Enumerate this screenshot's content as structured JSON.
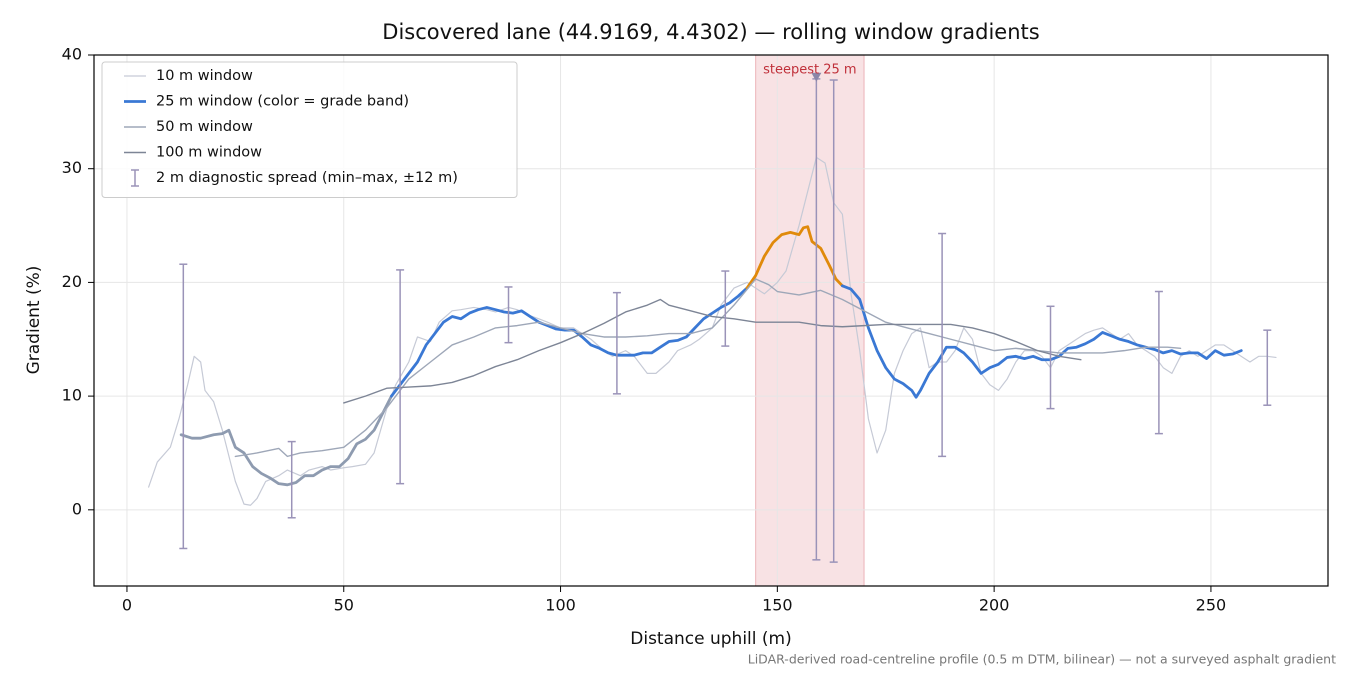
{
  "chart_data": {
    "type": "line",
    "title": "Discovered lane (44.9169, 4.4302) — rolling window gradients",
    "x_label": "Distance uphill (m)",
    "y_label": "Gradient (%)",
    "footnote": "LiDAR-derived road-centreline profile (0.5 m DTM, bilinear) — not a surveyed asphalt gradient",
    "xlim": [
      -7.6,
      277
    ],
    "ylim": [
      -6.7,
      40
    ],
    "xticks": [
      0,
      50,
      100,
      150,
      200,
      250
    ],
    "yticks": [
      0,
      10,
      20,
      30,
      40
    ],
    "grid": true,
    "legend": "upper left",
    "highlight": {
      "xrange": [
        145,
        170
      ],
      "label": "steepest 25 m",
      "color": "#e8a4aa",
      "label_color": "#c0303a",
      "marker": {
        "x": 159,
        "y": 38
      }
    },
    "series": [
      {
        "name": "10 m window",
        "color": "#c6cad6",
        "width": 1.2,
        "x": [
          5,
          7,
          10,
          12,
          14,
          15.5,
          17,
          18,
          20,
          22,
          24,
          25,
          27,
          28.5,
          30,
          32,
          35,
          37,
          40,
          42,
          45,
          47,
          50,
          52,
          55,
          57,
          60,
          62,
          65,
          67,
          70,
          72,
          75,
          77,
          80,
          83,
          85,
          88,
          90,
          92,
          95,
          97,
          100,
          103,
          105,
          107,
          110,
          112,
          115,
          117,
          120,
          122,
          125,
          127,
          130,
          132,
          135,
          137,
          140,
          143,
          145,
          147,
          150,
          152,
          155,
          157,
          159,
          161,
          163,
          165,
          167,
          169,
          171,
          173,
          175,
          177,
          179,
          181,
          183,
          185,
          187,
          189,
          191,
          193,
          195,
          197,
          199,
          201,
          203,
          205,
          207,
          209,
          211,
          213,
          215,
          217,
          219,
          221,
          223,
          225,
          227,
          229,
          231,
          233,
          235,
          237,
          239,
          241,
          243,
          245,
          247,
          249,
          251,
          253,
          255,
          257,
          259,
          261,
          263,
          265
        ],
        "values": [
          2,
          4.2,
          5.5,
          8,
          11,
          13.5,
          13,
          10.5,
          9.5,
          7,
          4,
          2.5,
          0.5,
          0.4,
          1,
          2.5,
          3,
          3.5,
          3,
          3.5,
          3.8,
          3.5,
          3.7,
          3.8,
          4,
          5,
          9,
          11,
          13,
          15.2,
          14.8,
          16.5,
          17.5,
          17.6,
          17.8,
          17.6,
          17.4,
          17.8,
          17.6,
          17.2,
          16.8,
          16.5,
          16,
          16,
          15.5,
          15,
          14,
          13.5,
          14,
          13.5,
          12,
          12,
          13,
          14,
          14.5,
          15,
          16,
          18,
          19.5,
          20,
          19.5,
          19,
          20,
          21,
          25,
          28,
          31,
          30.5,
          27,
          26,
          19,
          14,
          8,
          5,
          7,
          12,
          14,
          15.5,
          16,
          12.5,
          13,
          13,
          14,
          16,
          15,
          12,
          11,
          10.5,
          11.5,
          13,
          14,
          14,
          13.5,
          12.5,
          14,
          14.5,
          15,
          15.5,
          15.8,
          16,
          15.5,
          15,
          15.5,
          14.5,
          14,
          13.5,
          12.5,
          12,
          13.5,
          14,
          13.5,
          14,
          14.5,
          14.5,
          14,
          13.5,
          13,
          13.5,
          13.5,
          13.4
        ]
      },
      {
        "name": "25 m window (color = grade band)",
        "color": "#3a78d4",
        "width": 2.8,
        "grade_bands": {
          "thresholds": [
            10,
            20
          ],
          "colors": [
            "#8e9bb0",
            "#3a78d4",
            "#e08a0b"
          ]
        },
        "x": [
          12.5,
          15,
          17,
          20,
          22,
          23.5,
          25,
          27,
          29,
          31,
          33,
          35,
          37,
          39,
          41,
          43,
          45,
          47,
          49,
          51,
          53,
          55,
          57,
          59,
          61,
          63,
          65,
          67,
          69,
          71,
          73,
          75,
          77,
          79,
          81,
          83,
          85,
          87,
          89,
          91,
          93,
          95,
          97,
          99,
          101,
          103,
          105,
          107,
          109,
          111,
          113,
          115,
          117,
          119,
          121,
          123,
          125,
          127,
          129,
          131,
          133,
          135,
          137,
          139,
          141,
          143,
          145,
          147,
          149,
          151,
          153,
          155,
          156,
          157,
          158,
          160,
          162,
          163.5,
          165,
          167,
          169,
          171,
          173,
          175,
          177,
          179,
          181,
          182,
          183,
          185,
          187,
          189,
          191,
          193,
          195,
          197,
          199,
          201,
          203,
          205,
          207,
          209,
          211,
          213,
          215,
          217,
          219,
          221,
          223,
          225,
          227,
          229,
          231,
          233,
          235,
          237,
          239,
          241,
          243,
          245,
          247,
          249,
          251,
          253,
          255,
          257
        ],
        "values": [
          6.6,
          6.3,
          6.3,
          6.6,
          6.7,
          7,
          5.5,
          5,
          3.8,
          3.2,
          2.8,
          2.3,
          2.2,
          2.4,
          3,
          3,
          3.5,
          3.8,
          3.8,
          4.5,
          5.8,
          6.2,
          7,
          8.5,
          10,
          11,
          12,
          13,
          14.5,
          15.5,
          16.5,
          17,
          16.8,
          17.3,
          17.6,
          17.8,
          17.6,
          17.4,
          17.3,
          17.5,
          17,
          16.5,
          16.2,
          15.9,
          15.8,
          15.8,
          15.2,
          14.5,
          14.2,
          13.8,
          13.6,
          13.6,
          13.6,
          13.8,
          13.8,
          14.3,
          14.8,
          14.9,
          15.2,
          16,
          16.8,
          17.3,
          17.8,
          18.2,
          18.8,
          19.5,
          20.6,
          22.3,
          23.5,
          24.2,
          24.4,
          24.2,
          24.8,
          24.9,
          23.6,
          23,
          21.5,
          20.3,
          19.7,
          19.4,
          18.5,
          16,
          14,
          12.5,
          11.5,
          11.1,
          10.5,
          9.9,
          10.5,
          12,
          13,
          14.3,
          14.3,
          13.8,
          13,
          12,
          12.5,
          12.8,
          13.4,
          13.5,
          13.3,
          13.5,
          13.2,
          13.2,
          13.5,
          14.2,
          14.3,
          14.6,
          15,
          15.6,
          15.3,
          15,
          14.8,
          14.5,
          14.3,
          14.1,
          13.8,
          14,
          13.7,
          13.8,
          13.8,
          13.3,
          14,
          13.6,
          13.7,
          14
        ]
      },
      {
        "name": "50 m window",
        "color": "#9ea7b8",
        "width": 1.4,
        "x": [
          25,
          30,
          35,
          37,
          40,
          45,
          50,
          55,
          60,
          65,
          70,
          75,
          80,
          85,
          90,
          95,
          100,
          105,
          110,
          115,
          120,
          125,
          130,
          135,
          140,
          145,
          148,
          150,
          155,
          160,
          165,
          170,
          175,
          180,
          185,
          190,
          195,
          200,
          205,
          210,
          215,
          220,
          225,
          230,
          235,
          240,
          243
        ],
        "values": [
          4.7,
          5,
          5.4,
          4.7,
          5,
          5.2,
          5.5,
          7,
          9,
          11.5,
          13,
          14.5,
          15.2,
          16,
          16.2,
          16.5,
          16,
          15.5,
          15.2,
          15.2,
          15.3,
          15.5,
          15.5,
          16,
          18,
          20.3,
          19.8,
          19.2,
          18.9,
          19.3,
          18.5,
          17.5,
          16.5,
          16,
          15.5,
          15,
          14.5,
          14,
          14.2,
          14,
          13.8,
          13.8,
          13.8,
          14,
          14.3,
          14.3,
          14.2
        ]
      },
      {
        "name": "100 m window",
        "color": "#7d8596",
        "width": 1.4,
        "x": [
          50,
          55,
          60,
          65,
          70,
          75,
          80,
          85,
          90,
          95,
          100,
          105,
          110,
          115,
          120,
          123,
          125,
          130,
          135,
          140,
          145,
          150,
          155,
          160,
          165,
          170,
          175,
          180,
          185,
          190,
          195,
          200,
          205,
          210,
          215,
          220
        ],
        "values": [
          9.4,
          10,
          10.7,
          10.8,
          10.9,
          11.2,
          11.8,
          12.6,
          13.2,
          14,
          14.7,
          15.5,
          16.4,
          17.4,
          18,
          18.5,
          18,
          17.5,
          17,
          16.8,
          16.5,
          16.5,
          16.5,
          16.2,
          16.1,
          16.2,
          16.3,
          16.3,
          16.3,
          16.3,
          16,
          15.5,
          14.8,
          14,
          13.5,
          13.2
        ]
      }
    ],
    "errorbars": {
      "name": "2 m diagnostic spread (min–max, ±12 m)",
      "color": "#9a93b8",
      "x": [
        13,
        38,
        63,
        88,
        113,
        138,
        159,
        163,
        188,
        213,
        238,
        263
      ],
      "low": [
        -3.4,
        -0.7,
        2.3,
        14.7,
        10.2,
        14.4,
        -4.4,
        -4.6,
        4.7,
        8.9,
        6.7,
        9.2
      ],
      "high": [
        21.6,
        6.0,
        21.1,
        19.6,
        19.1,
        21.0,
        37.9,
        37.8,
        24.3,
        17.9,
        19.2,
        15.8
      ]
    }
  }
}
